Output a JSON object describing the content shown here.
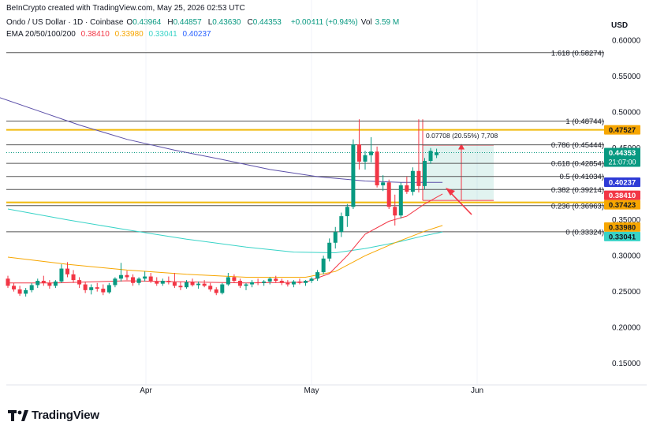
{
  "header": {
    "credit": "BeInCrypto created with TradingView.com, May 25, 2026 02:53 UTC",
    "symbol": "Ondo / US Dollar · 1D · Coinbase",
    "ohlc": [
      {
        "k": "O",
        "v": "0.43964"
      },
      {
        "k": "H",
        "v": "0.44857"
      },
      {
        "k": "L",
        "v": "0.43630"
      },
      {
        "k": "C",
        "v": "0.44353"
      }
    ],
    "change": "+0.00411 (+0.94%)",
    "vol_label": "Vol",
    "vol_value": "3.59 M",
    "ema_label": "EMA 20/50/100/200",
    "ema_values": [
      "0.38410",
      "0.33980",
      "0.33041",
      "0.40237"
    ]
  },
  "currency": "USD",
  "brand": "TradingView",
  "colors": {
    "up": "#089981",
    "down": "#f23645",
    "ema20": "#f23645",
    "ema50": "#f7a600",
    "ema100": "#38d3c7",
    "ema200": "#5b4fa8",
    "fib": "#555555",
    "fib_gold": "#f0b90b"
  },
  "chart_data": {
    "type": "candlestick",
    "ylim": [
      0.12,
      0.61
    ],
    "y_ticks": [
      "0.15000",
      "0.20000",
      "0.25000",
      "0.30000",
      "0.35000",
      "0.40000",
      "0.45000",
      "0.50000",
      "0.55000",
      "0.60000"
    ],
    "x_labels": [
      "Apr",
      "May",
      "Jun"
    ],
    "fib_levels": [
      {
        "label": "1.618 (0.58274)",
        "value": 0.58274,
        "gold": false
      },
      {
        "label": "1 (0.48744)",
        "value": 0.48744,
        "gold": false
      },
      {
        "label": "0.786 (0.45444)",
        "value": 0.45444,
        "gold": false
      },
      {
        "label": "0.618 (0.42854)",
        "value": 0.42854,
        "gold": false
      },
      {
        "label": "0.5 (0.41034)",
        "value": 0.41034,
        "gold": false
      },
      {
        "label": "0.382 (0.39214)",
        "value": 0.39214,
        "gold": false
      },
      {
        "label": "0.236 (0.36963)",
        "value": 0.36963,
        "gold": false
      },
      {
        "label": "0 (0.33324)",
        "value": 0.33324,
        "gold": false
      }
    ],
    "horizontal_lines": [
      {
        "value": 0.47527,
        "color": "#f0b90b"
      },
      {
        "value": 0.37423,
        "color": "#f0b90b"
      }
    ],
    "price_tags": [
      {
        "label": "0.47527",
        "value": 0.47527,
        "bg": "#f7a600",
        "fg": "#131722"
      },
      {
        "label": "0.44353",
        "value": 0.44353,
        "bg": "#089981",
        "fg": "#ffffff",
        "sub": "21:07:00"
      },
      {
        "label": "0.40237",
        "value": 0.40237,
        "bg": "#2e3bd6",
        "fg": "#ffffff"
      },
      {
        "label": "0.38410",
        "value": 0.3841,
        "bg": "#f23645",
        "fg": "#ffffff"
      },
      {
        "label": "0.37423",
        "value": 0.37423,
        "bg": "#f7a600",
        "fg": "#131722"
      },
      {
        "label": "0.33980",
        "value": 0.3398,
        "bg": "#f7a600",
        "fg": "#131722"
      },
      {
        "label": "0.33041",
        "value": 0.33041,
        "bg": "#38d3c7",
        "fg": "#131722"
      }
    ],
    "measure_label": "0.07708 (20.55%) 7,708",
    "candles": [
      [
        0.268,
        0.272,
        0.255,
        0.258
      ],
      [
        0.258,
        0.262,
        0.25,
        0.253
      ],
      [
        0.253,
        0.258,
        0.244,
        0.247
      ],
      [
        0.247,
        0.255,
        0.243,
        0.252
      ],
      [
        0.252,
        0.262,
        0.249,
        0.259
      ],
      [
        0.259,
        0.268,
        0.255,
        0.265
      ],
      [
        0.265,
        0.272,
        0.258,
        0.262
      ],
      [
        0.262,
        0.266,
        0.254,
        0.258
      ],
      [
        0.258,
        0.266,
        0.255,
        0.264
      ],
      [
        0.264,
        0.288,
        0.262,
        0.282
      ],
      [
        0.282,
        0.291,
        0.27,
        0.274
      ],
      [
        0.274,
        0.28,
        0.262,
        0.266
      ],
      [
        0.266,
        0.27,
        0.255,
        0.26
      ],
      [
        0.26,
        0.264,
        0.248,
        0.252
      ],
      [
        0.252,
        0.26,
        0.246,
        0.256
      ],
      [
        0.256,
        0.262,
        0.25,
        0.254
      ],
      [
        0.254,
        0.26,
        0.245,
        0.249
      ],
      [
        0.249,
        0.262,
        0.247,
        0.259
      ],
      [
        0.259,
        0.27,
        0.256,
        0.268
      ],
      [
        0.268,
        0.29,
        0.264,
        0.273
      ],
      [
        0.273,
        0.279,
        0.266,
        0.27
      ],
      [
        0.27,
        0.274,
        0.258,
        0.262
      ],
      [
        0.262,
        0.27,
        0.259,
        0.268
      ],
      [
        0.268,
        0.278,
        0.264,
        0.271
      ],
      [
        0.271,
        0.276,
        0.262,
        0.264
      ],
      [
        0.264,
        0.27,
        0.258,
        0.261
      ],
      [
        0.261,
        0.268,
        0.258,
        0.265
      ],
      [
        0.265,
        0.271,
        0.26,
        0.263
      ],
      [
        0.263,
        0.276,
        0.255,
        0.258
      ],
      [
        0.258,
        0.264,
        0.252,
        0.256
      ],
      [
        0.256,
        0.266,
        0.254,
        0.263
      ],
      [
        0.263,
        0.268,
        0.257,
        0.259
      ],
      [
        0.259,
        0.264,
        0.254,
        0.261
      ],
      [
        0.261,
        0.266,
        0.256,
        0.258
      ],
      [
        0.258,
        0.262,
        0.25,
        0.253
      ],
      [
        0.253,
        0.256,
        0.245,
        0.248
      ],
      [
        0.248,
        0.262,
        0.246,
        0.26
      ],
      [
        0.26,
        0.276,
        0.258,
        0.27
      ],
      [
        0.27,
        0.274,
        0.262,
        0.265
      ],
      [
        0.265,
        0.268,
        0.255,
        0.258
      ],
      [
        0.258,
        0.262,
        0.252,
        0.26
      ],
      [
        0.26,
        0.266,
        0.256,
        0.263
      ],
      [
        0.263,
        0.268,
        0.259,
        0.262
      ],
      [
        0.262,
        0.266,
        0.258,
        0.264
      ],
      [
        0.264,
        0.27,
        0.26,
        0.268
      ],
      [
        0.268,
        0.272,
        0.262,
        0.265
      ],
      [
        0.265,
        0.268,
        0.259,
        0.262
      ],
      [
        0.262,
        0.266,
        0.257,
        0.26
      ],
      [
        0.26,
        0.266,
        0.256,
        0.264
      ],
      [
        0.264,
        0.268,
        0.26,
        0.262
      ],
      [
        0.262,
        0.266,
        0.258,
        0.265
      ],
      [
        0.265,
        0.27,
        0.262,
        0.268
      ],
      [
        0.268,
        0.28,
        0.265,
        0.277
      ],
      [
        0.277,
        0.3,
        0.274,
        0.296
      ],
      [
        0.296,
        0.324,
        0.292,
        0.318
      ],
      [
        0.318,
        0.34,
        0.31,
        0.333
      ],
      [
        0.333,
        0.36,
        0.326,
        0.355
      ],
      [
        0.355,
        0.372,
        0.34,
        0.368
      ],
      [
        0.368,
        0.462,
        0.365,
        0.455
      ],
      [
        0.455,
        0.49,
        0.42,
        0.431
      ],
      [
        0.431,
        0.446,
        0.42,
        0.44
      ],
      [
        0.44,
        0.465,
        0.43,
        0.445
      ],
      [
        0.445,
        0.452,
        0.395,
        0.398
      ],
      [
        0.398,
        0.412,
        0.39,
        0.402
      ],
      [
        0.402,
        0.406,
        0.365,
        0.368
      ],
      [
        0.368,
        0.385,
        0.342,
        0.356
      ],
      [
        0.356,
        0.402,
        0.352,
        0.398
      ],
      [
        0.398,
        0.41,
        0.386,
        0.389
      ],
      [
        0.389,
        0.423,
        0.384,
        0.418
      ],
      [
        0.418,
        0.49,
        0.388,
        0.397
      ],
      [
        0.397,
        0.436,
        0.392,
        0.432
      ],
      [
        0.432,
        0.45,
        0.428,
        0.446
      ],
      [
        0.44,
        0.449,
        0.436,
        0.444
      ]
    ],
    "ema20": [
      [
        0,
        0.262
      ],
      [
        8,
        0.262
      ],
      [
        20,
        0.265
      ],
      [
        40,
        0.262
      ],
      [
        50,
        0.263
      ],
      [
        54,
        0.275
      ],
      [
        57,
        0.3
      ],
      [
        60,
        0.33
      ],
      [
        64,
        0.348
      ],
      [
        67,
        0.355
      ],
      [
        70,
        0.372
      ],
      [
        73,
        0.386
      ]
    ],
    "ema50": [
      [
        0,
        0.298
      ],
      [
        10,
        0.288
      ],
      [
        20,
        0.28
      ],
      [
        30,
        0.274
      ],
      [
        40,
        0.27
      ],
      [
        50,
        0.27
      ],
      [
        55,
        0.278
      ],
      [
        60,
        0.3
      ],
      [
        65,
        0.318
      ],
      [
        70,
        0.334
      ],
      [
        73,
        0.342
      ]
    ],
    "ema100": [
      [
        0,
        0.365
      ],
      [
        10,
        0.35
      ],
      [
        20,
        0.336
      ],
      [
        30,
        0.323
      ],
      [
        40,
        0.312
      ],
      [
        48,
        0.305
      ],
      [
        55,
        0.304
      ],
      [
        60,
        0.31
      ],
      [
        65,
        0.318
      ],
      [
        70,
        0.328
      ],
      [
        73,
        0.333
      ]
    ],
    "ema200": [
      [
        -2,
        0.522
      ],
      [
        5,
        0.502
      ],
      [
        12,
        0.482
      ],
      [
        20,
        0.462
      ],
      [
        28,
        0.447
      ],
      [
        36,
        0.434
      ],
      [
        44,
        0.42
      ],
      [
        52,
        0.41
      ],
      [
        60,
        0.404
      ],
      [
        66,
        0.402
      ],
      [
        73,
        0.402
      ]
    ]
  }
}
